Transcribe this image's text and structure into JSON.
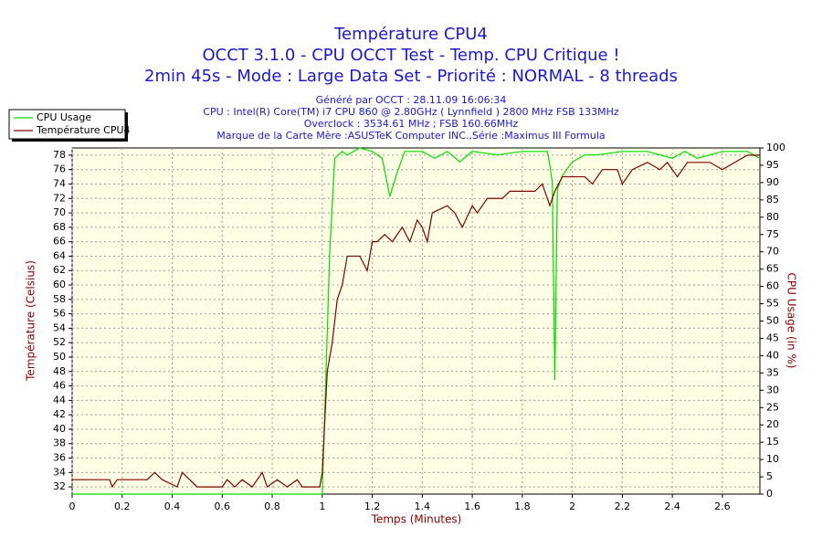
{
  "chart_data": {
    "type": "line",
    "title": "Température CPU4",
    "subtitle": [
      "OCCT 3.1.0 - CPU OCCT Test - Temp. CPU Critique !",
      "2min 45s - Mode : Large Data Set - Priorité : NORMAL - 8 threads"
    ],
    "info": [
      "Généré par OCCT : 28.11.09 16:06:34",
      "CPU : Intel(R) Core(TM) i7 CPU 860 @ 2.80GHz ( Lynnfield ) 2800 MHz FSB 133MHz",
      "Overclock : 3534.61 MHz ; FSB 160.66MHz",
      "Marque de la Carte Mère :ASUSTeK Computer INC.,Série :Maximus III Formula"
    ],
    "x_label": "Temps (Minutes)",
    "y_label": "Température (Celsius)",
    "y2_label": "CPU Usage (in %)",
    "xlim": [
      0,
      2.75
    ],
    "xticks": [
      0,
      0.2,
      0.4,
      0.6,
      0.8,
      1,
      1.2,
      1.4,
      1.6,
      1.8,
      2,
      2.2,
      2.4,
      2.6
    ],
    "ylim": [
      31,
      79
    ],
    "yticks": [
      32,
      34,
      36,
      38,
      40,
      42,
      44,
      46,
      48,
      50,
      52,
      54,
      56,
      58,
      60,
      62,
      64,
      66,
      68,
      70,
      72,
      74,
      76,
      78
    ],
    "y2lim": [
      0,
      100
    ],
    "y2ticks": [
      0,
      5,
      10,
      15,
      20,
      25,
      30,
      35,
      40,
      45,
      50,
      55,
      60,
      65,
      70,
      75,
      80,
      85,
      90,
      95,
      100
    ],
    "grid": true,
    "legend": "top-left",
    "series": [
      {
        "name": "CPU Usage",
        "color": "#00dd00",
        "axis": "y2",
        "x": [
          0,
          0.99,
          1.0,
          1.03,
          1.05,
          1.08,
          1.1,
          1.15,
          1.2,
          1.24,
          1.27,
          1.3,
          1.33,
          1.4,
          1.45,
          1.5,
          1.55,
          1.6,
          1.7,
          1.8,
          1.9,
          1.91,
          1.92,
          1.93,
          1.94,
          1.96,
          2.0,
          2.05,
          2.1,
          2.2,
          2.3,
          2.4,
          2.45,
          2.5,
          2.6,
          2.7,
          2.75
        ],
        "values": [
          0,
          0,
          0,
          70,
          97,
          99,
          98,
          100,
          99,
          97,
          86,
          93,
          99,
          99,
          97,
          99,
          96,
          99,
          98,
          99,
          99,
          95,
          90,
          33,
          88,
          92,
          96,
          98,
          98,
          99,
          99,
          97,
          99,
          97,
          99,
          99,
          97
        ]
      },
      {
        "name": "Température CPU4",
        "color": "#800000",
        "x": [
          0,
          0.15,
          0.16,
          0.18,
          0.3,
          0.33,
          0.36,
          0.42,
          0.44,
          0.47,
          0.5,
          0.6,
          0.62,
          0.65,
          0.68,
          0.72,
          0.76,
          0.78,
          0.82,
          0.86,
          0.9,
          0.92,
          0.99,
          1.0,
          1.02,
          1.04,
          1.06,
          1.08,
          1.1,
          1.15,
          1.18,
          1.2,
          1.22,
          1.25,
          1.28,
          1.32,
          1.35,
          1.38,
          1.4,
          1.42,
          1.44,
          1.5,
          1.53,
          1.56,
          1.6,
          1.62,
          1.66,
          1.72,
          1.75,
          1.85,
          1.88,
          1.91,
          1.93,
          1.96,
          2.05,
          2.08,
          2.12,
          2.18,
          2.2,
          2.24,
          2.3,
          2.35,
          2.38,
          2.42,
          2.46,
          2.55,
          2.6,
          2.65,
          2.7,
          2.75
        ],
        "values": [
          33,
          33,
          32,
          33,
          33,
          34,
          33,
          32,
          34,
          33,
          32,
          32,
          33,
          32,
          33,
          32,
          34,
          32,
          33,
          32,
          33,
          32,
          32,
          34,
          48,
          52,
          58,
          60,
          64,
          64,
          62,
          66,
          66,
          67,
          66,
          68,
          66,
          69,
          68,
          66,
          70,
          71,
          70,
          68,
          71,
          70,
          72,
          72,
          73,
          73,
          74,
          71,
          73,
          75,
          75,
          74,
          76,
          76,
          74,
          76,
          77,
          76,
          77,
          75,
          77,
          77,
          76,
          77,
          78,
          78
        ]
      }
    ]
  }
}
